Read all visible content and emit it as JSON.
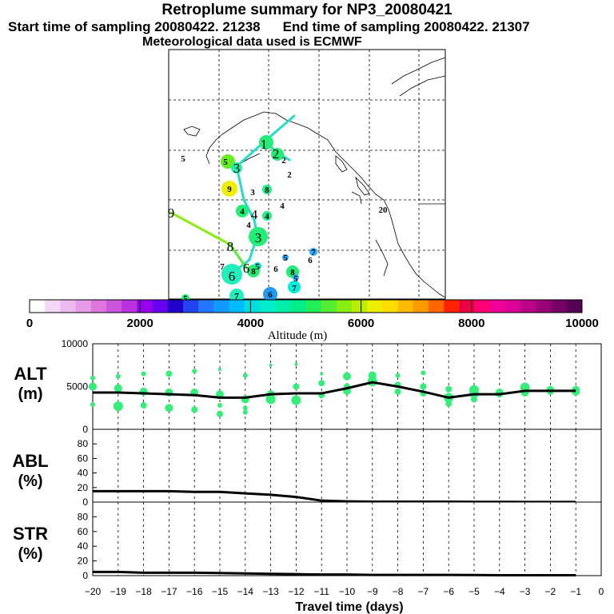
{
  "header": {
    "title": "Retroplume summary for NP3_20080421",
    "start_label": "Start time of sampling 20080422. 21238",
    "end_label": "End time of sampling 20080422. 21307",
    "met_label": "Meteorological data used is ECMWF"
  },
  "colors": {
    "altitude_scale": [
      "#ffffff",
      "#f6d6f6",
      "#eebbee",
      "#e69be6",
      "#dd77dd",
      "#cc55dd",
      "#b833dd",
      "#9900ee",
      "#6600ee",
      "#2200cc",
      "#2244ee",
      "#2277ff",
      "#1199ff",
      "#00bbff",
      "#00dddd",
      "#00eecc",
      "#00eeaa",
      "#00ee88",
      "#22ee55",
      "#55ee33",
      "#88ee11",
      "#bbee00",
      "#eeee00",
      "#ffdd00",
      "#ffbb00",
      "#ff9900",
      "#ff6600",
      "#ff2200",
      "#ee0044",
      "#ff0077",
      "#ee0099",
      "#dd0099",
      "#bb0088",
      "#990077",
      "#770066",
      "#550055"
    ],
    "dot_green": "#33ee77",
    "line": "#000000"
  },
  "colorbar": {
    "ticks": [
      "0",
      "2000",
      "4000",
      "6000",
      "8000",
      "10000"
    ],
    "label": "Altitude (m)"
  },
  "map": {
    "labels": [
      {
        "t": "1",
        "x": 330,
        "y": 180,
        "big": true
      },
      {
        "t": "2",
        "x": 345,
        "y": 192,
        "big": true
      },
      {
        "t": "2",
        "x": 355,
        "y": 200,
        "big": false
      },
      {
        "t": "3",
        "x": 296,
        "y": 210,
        "big": true
      },
      {
        "t": "5",
        "x": 282,
        "y": 202,
        "big": false
      },
      {
        "t": "5",
        "x": 229,
        "y": 198,
        "big": false
      },
      {
        "t": "9",
        "x": 287,
        "y": 236,
        "big": false
      },
      {
        "t": "3",
        "x": 316,
        "y": 240,
        "big": false
      },
      {
        "t": "8",
        "x": 334,
        "y": 237,
        "big": false
      },
      {
        "t": "2",
        "x": 362,
        "y": 218,
        "big": false
      },
      {
        "t": "4",
        "x": 303,
        "y": 264,
        "big": false
      },
      {
        "t": "4",
        "x": 318,
        "y": 268,
        "big": true
      },
      {
        "t": "4",
        "x": 334,
        "y": 270,
        "big": false
      },
      {
        "t": "4",
        "x": 353,
        "y": 257,
        "big": false
      },
      {
        "t": "4",
        "x": 311,
        "y": 281,
        "big": false
      },
      {
        "t": "9",
        "x": 214,
        "y": 266,
        "big": true
      },
      {
        "t": "20",
        "x": 479,
        "y": 262,
        "big": false
      },
      {
        "t": "3",
        "x": 323,
        "y": 297,
        "big": true
      },
      {
        "t": "8",
        "x": 288,
        "y": 308,
        "big": true
      },
      {
        "t": "7",
        "x": 392,
        "y": 315,
        "big": false
      },
      {
        "t": "5",
        "x": 357,
        "y": 322,
        "big": false
      },
      {
        "t": "6",
        "x": 388,
        "y": 325,
        "big": false
      },
      {
        "t": "7",
        "x": 278,
        "y": 333,
        "big": false
      },
      {
        "t": "5",
        "x": 322,
        "y": 333,
        "big": false
      },
      {
        "t": "6",
        "x": 308,
        "y": 335,
        "big": true
      },
      {
        "t": "8",
        "x": 317,
        "y": 339,
        "big": false
      },
      {
        "t": "6",
        "x": 345,
        "y": 336,
        "big": false
      },
      {
        "t": "8",
        "x": 366,
        "y": 340,
        "big": false
      },
      {
        "t": "6",
        "x": 290,
        "y": 345,
        "big": true
      },
      {
        "t": "5",
        "x": 370,
        "y": 348,
        "big": false
      },
      {
        "t": "7",
        "x": 368,
        "y": 360,
        "big": false
      },
      {
        "t": "6",
        "x": 338,
        "y": 368,
        "big": false
      },
      {
        "t": "7",
        "x": 296,
        "y": 370,
        "big": false
      },
      {
        "t": "5",
        "x": 232,
        "y": 373,
        "big": false
      }
    ]
  },
  "chart_data": [
    {
      "type": "scatter",
      "panel": "ALT",
      "ylabel": "ALT",
      "yunit": "(m)",
      "ylim": [
        0,
        10000
      ],
      "yticks": [
        0,
        5000,
        10000
      ],
      "x": [
        -20,
        -19,
        -18,
        -17,
        -16,
        -15,
        -14,
        -13,
        -12,
        -11,
        -10,
        -9,
        -8,
        -7,
        -6,
        -5,
        -4,
        -3,
        -2,
        -1
      ],
      "mean_altitude": [
        4300,
        4300,
        4200,
        4100,
        4000,
        3700,
        3700,
        4100,
        4200,
        4200,
        4800,
        5500,
        5000,
        4400,
        3700,
        4100,
        4100,
        4500,
        4500,
        4500
      ],
      "cluster_points": [
        {
          "x": -20,
          "y": [
            6000,
            5000,
            2900
          ],
          "r": [
            3,
            5,
            3
          ]
        },
        {
          "x": -19,
          "y": [
            6200,
            4800,
            2700
          ],
          "r": [
            3,
            5,
            6
          ]
        },
        {
          "x": -18,
          "y": [
            6500,
            4400,
            2800
          ],
          "r": [
            3,
            5,
            4
          ]
        },
        {
          "x": -17,
          "y": [
            6500,
            4300,
            2500
          ],
          "r": [
            4,
            5,
            5
          ]
        },
        {
          "x": -16,
          "y": [
            6800,
            4300,
            2300
          ],
          "r": [
            3,
            5,
            4
          ]
        },
        {
          "x": -15,
          "y": [
            7000,
            4100,
            2800,
            1800
          ],
          "r": [
            2,
            5,
            3,
            4
          ]
        },
        {
          "x": -14,
          "y": [
            6300,
            3500,
            2500,
            2000
          ],
          "r": [
            3,
            5,
            3,
            3
          ]
        },
        {
          "x": -13,
          "y": [
            7500,
            4100,
            3500
          ],
          "r": [
            2,
            5,
            6
          ]
        },
        {
          "x": -12,
          "y": [
            7600,
            5000,
            3400
          ],
          "r": [
            2,
            4,
            6
          ]
        },
        {
          "x": -11,
          "y": [
            6500,
            5400,
            4000
          ],
          "r": [
            2,
            4,
            4
          ]
        },
        {
          "x": -10,
          "y": [
            6200,
            5000,
            4500
          ],
          "r": [
            5,
            4,
            5
          ]
        },
        {
          "x": -9,
          "y": [
            6300,
            5600
          ],
          "r": [
            5,
            6
          ]
        },
        {
          "x": -8,
          "y": [
            6300,
            5200,
            4400
          ],
          "r": [
            3,
            4,
            4
          ]
        },
        {
          "x": -7,
          "y": [
            6600,
            5000,
            4200
          ],
          "r": [
            3,
            4,
            4
          ]
        },
        {
          "x": -6,
          "y": [
            4700,
            3700,
            3000
          ],
          "r": [
            4,
            6,
            4
          ]
        },
        {
          "x": -5,
          "y": [
            4600,
            4200,
            3500
          ],
          "r": [
            6,
            6,
            4
          ]
        },
        {
          "x": -4,
          "y": [
            4300,
            4100
          ],
          "r": [
            5,
            4
          ]
        },
        {
          "x": -3,
          "y": [
            4900,
            4300
          ],
          "r": [
            6,
            5
          ]
        },
        {
          "x": -2,
          "y": [
            4600,
            4400
          ],
          "r": [
            5,
            4
          ]
        },
        {
          "x": -1,
          "y": [
            4600,
            4400
          ],
          "r": [
            5,
            5
          ]
        }
      ],
      "xlim": [
        -20,
        0
      ]
    },
    {
      "type": "line",
      "panel": "ABL",
      "ylabel": "ABL",
      "yunit": "(%)",
      "ylim": [
        0,
        100
      ],
      "yticks": [
        0,
        20,
        40,
        60,
        80
      ],
      "x": [
        -20,
        -19,
        -18,
        -17,
        -16,
        -15,
        -14,
        -13,
        -12,
        -11,
        -10,
        -9,
        -8,
        -7,
        -6,
        -5,
        -4,
        -3,
        -2,
        -1
      ],
      "values": [
        15,
        15,
        15,
        15,
        14,
        14,
        12,
        10,
        7,
        2,
        1,
        0.5,
        0.5,
        0.5,
        0.5,
        0.3,
        0.3,
        0.2,
        0.2,
        0.2
      ],
      "xlim": [
        -20,
        0
      ]
    },
    {
      "type": "line",
      "panel": "STR",
      "ylabel": "STR",
      "yunit": "(%)",
      "ylim": [
        0,
        100
      ],
      "yticks": [
        0,
        20,
        40,
        60,
        80
      ],
      "x": [
        -20,
        -19,
        -18,
        -17,
        -16,
        -15,
        -14,
        -13,
        -12,
        -11,
        -10,
        -9,
        -8,
        -7,
        -6,
        -5,
        -4,
        -3,
        -2,
        -1
      ],
      "values": [
        5,
        5,
        4,
        4,
        4,
        3.5,
        3,
        2.5,
        2,
        1.5,
        1.5,
        1,
        1,
        1,
        1,
        0.8,
        0.5,
        0.5,
        0.5,
        0.5
      ],
      "xlim": [
        -20,
        0
      ],
      "xticks": [
        -20,
        -19,
        -18,
        -17,
        -16,
        -15,
        -14,
        -13,
        -12,
        -11,
        -10,
        -9,
        -8,
        -7,
        -6,
        -5,
        -4,
        -3,
        -2,
        -1,
        0
      ],
      "xlabel": "Travel time (days)"
    }
  ]
}
